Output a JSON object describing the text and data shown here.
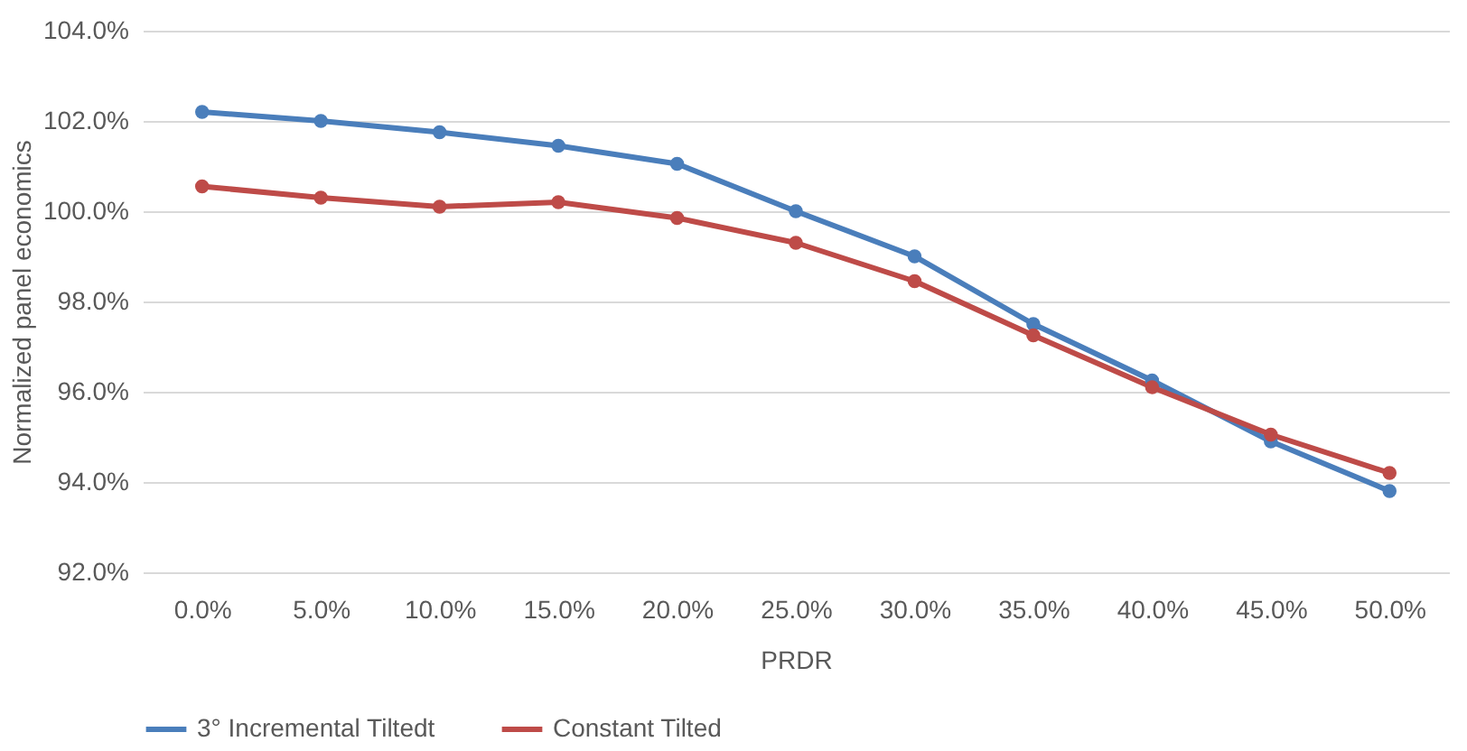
{
  "chart_data": {
    "type": "line",
    "xlabel": "PRDR",
    "ylabel": "Normalized panel economics",
    "categories": [
      "0.0%",
      "5.0%",
      "10.0%",
      "15.0%",
      "20.0%",
      "25.0%",
      "30.0%",
      "35.0%",
      "40.0%",
      "45.0%",
      "50.0%"
    ],
    "series": [
      {
        "name": "3° Incremental Tiltedt",
        "color": "#4a7ebb",
        "values": [
          102.2,
          102.0,
          101.75,
          101.45,
          101.05,
          100.0,
          99.0,
          97.5,
          96.25,
          94.9,
          93.8
        ]
      },
      {
        "name": "Constant Tilted",
        "color": "#be4b48",
        "values": [
          100.55,
          100.3,
          100.1,
          100.2,
          99.85,
          99.3,
          98.45,
          97.25,
          96.1,
          95.05,
          94.2
        ]
      }
    ],
    "ylim": [
      92,
      104
    ],
    "yticks": [
      {
        "value": 92,
        "label": "92.0%"
      },
      {
        "value": 94,
        "label": "94.0%"
      },
      {
        "value": 96,
        "label": "96.0%"
      },
      {
        "value": 98,
        "label": "98.0%"
      },
      {
        "value": 100,
        "label": "100.0%"
      },
      {
        "value": 102,
        "label": "102.0%"
      },
      {
        "value": 104,
        "label": "104.0%"
      }
    ],
    "grid": "y",
    "legend": "bottom",
    "marker": "circle",
    "line_style": "solid"
  }
}
